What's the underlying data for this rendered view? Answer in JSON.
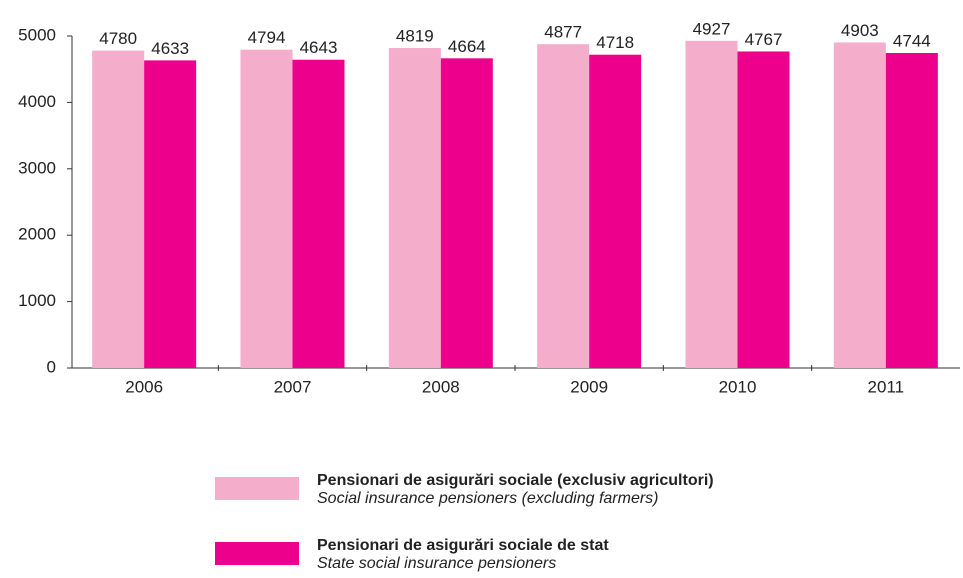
{
  "chart_data": {
    "type": "bar",
    "categories": [
      "2006",
      "2007",
      "2008",
      "2009",
      "2010",
      "2011"
    ],
    "series": [
      {
        "name": "Pensionari de asigurări sociale (exclusiv agricultori)",
        "name_en": "Social insurance pensioners (excluding farmers)",
        "color": "#f4aecb",
        "values": [
          4780,
          4794,
          4819,
          4877,
          4927,
          4903
        ]
      },
      {
        "name": "Pensionari de asigurări sociale de stat",
        "name_en": "State social insurance pensioners",
        "color": "#ec008c",
        "values": [
          4633,
          4643,
          4664,
          4718,
          4767,
          4744
        ]
      }
    ],
    "ylim": [
      0,
      5000
    ],
    "yticks": [
      0,
      1000,
      2000,
      3000,
      4000,
      5000
    ],
    "grid": false
  }
}
